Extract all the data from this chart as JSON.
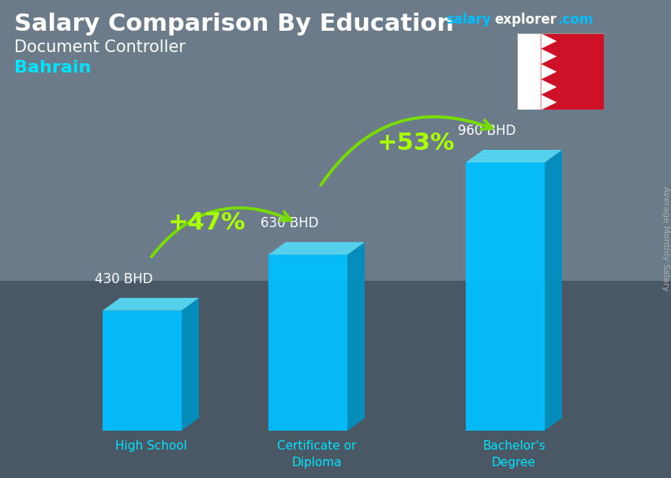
{
  "title_main": "Salary Comparison By Education",
  "subtitle1": "Document Controller",
  "subtitle2": "Bahrain",
  "categories": [
    "High School",
    "Certificate or\nDiploma",
    "Bachelor's\nDegree"
  ],
  "values": [
    430,
    630,
    960
  ],
  "labels": [
    "430 BHD",
    "630 BHD",
    "960 BHD"
  ],
  "pct_labels": [
    "+47%",
    "+53%"
  ],
  "bar_face_color": "#00BFFF",
  "bar_top_color": "#55D4F0",
  "bar_side_color": "#0090C0",
  "background_color": "#6b7b8a",
  "bg_dark": "#3d4a55",
  "title_color": "#ffffff",
  "subtitle1_color": "#ffffff",
  "subtitle2_color": "#00E5FF",
  "label_color": "#ffffff",
  "pct_color": "#AAFF00",
  "arrow_color": "#77DD00",
  "axis_label_color": "#00E5FF",
  "watermark_salary": "#00BFFF",
  "watermark_explorer": "#ffffff",
  "side_label_color": "#aaaaaa",
  "flag_red": "#CE1126",
  "flag_white": "#ffffff"
}
